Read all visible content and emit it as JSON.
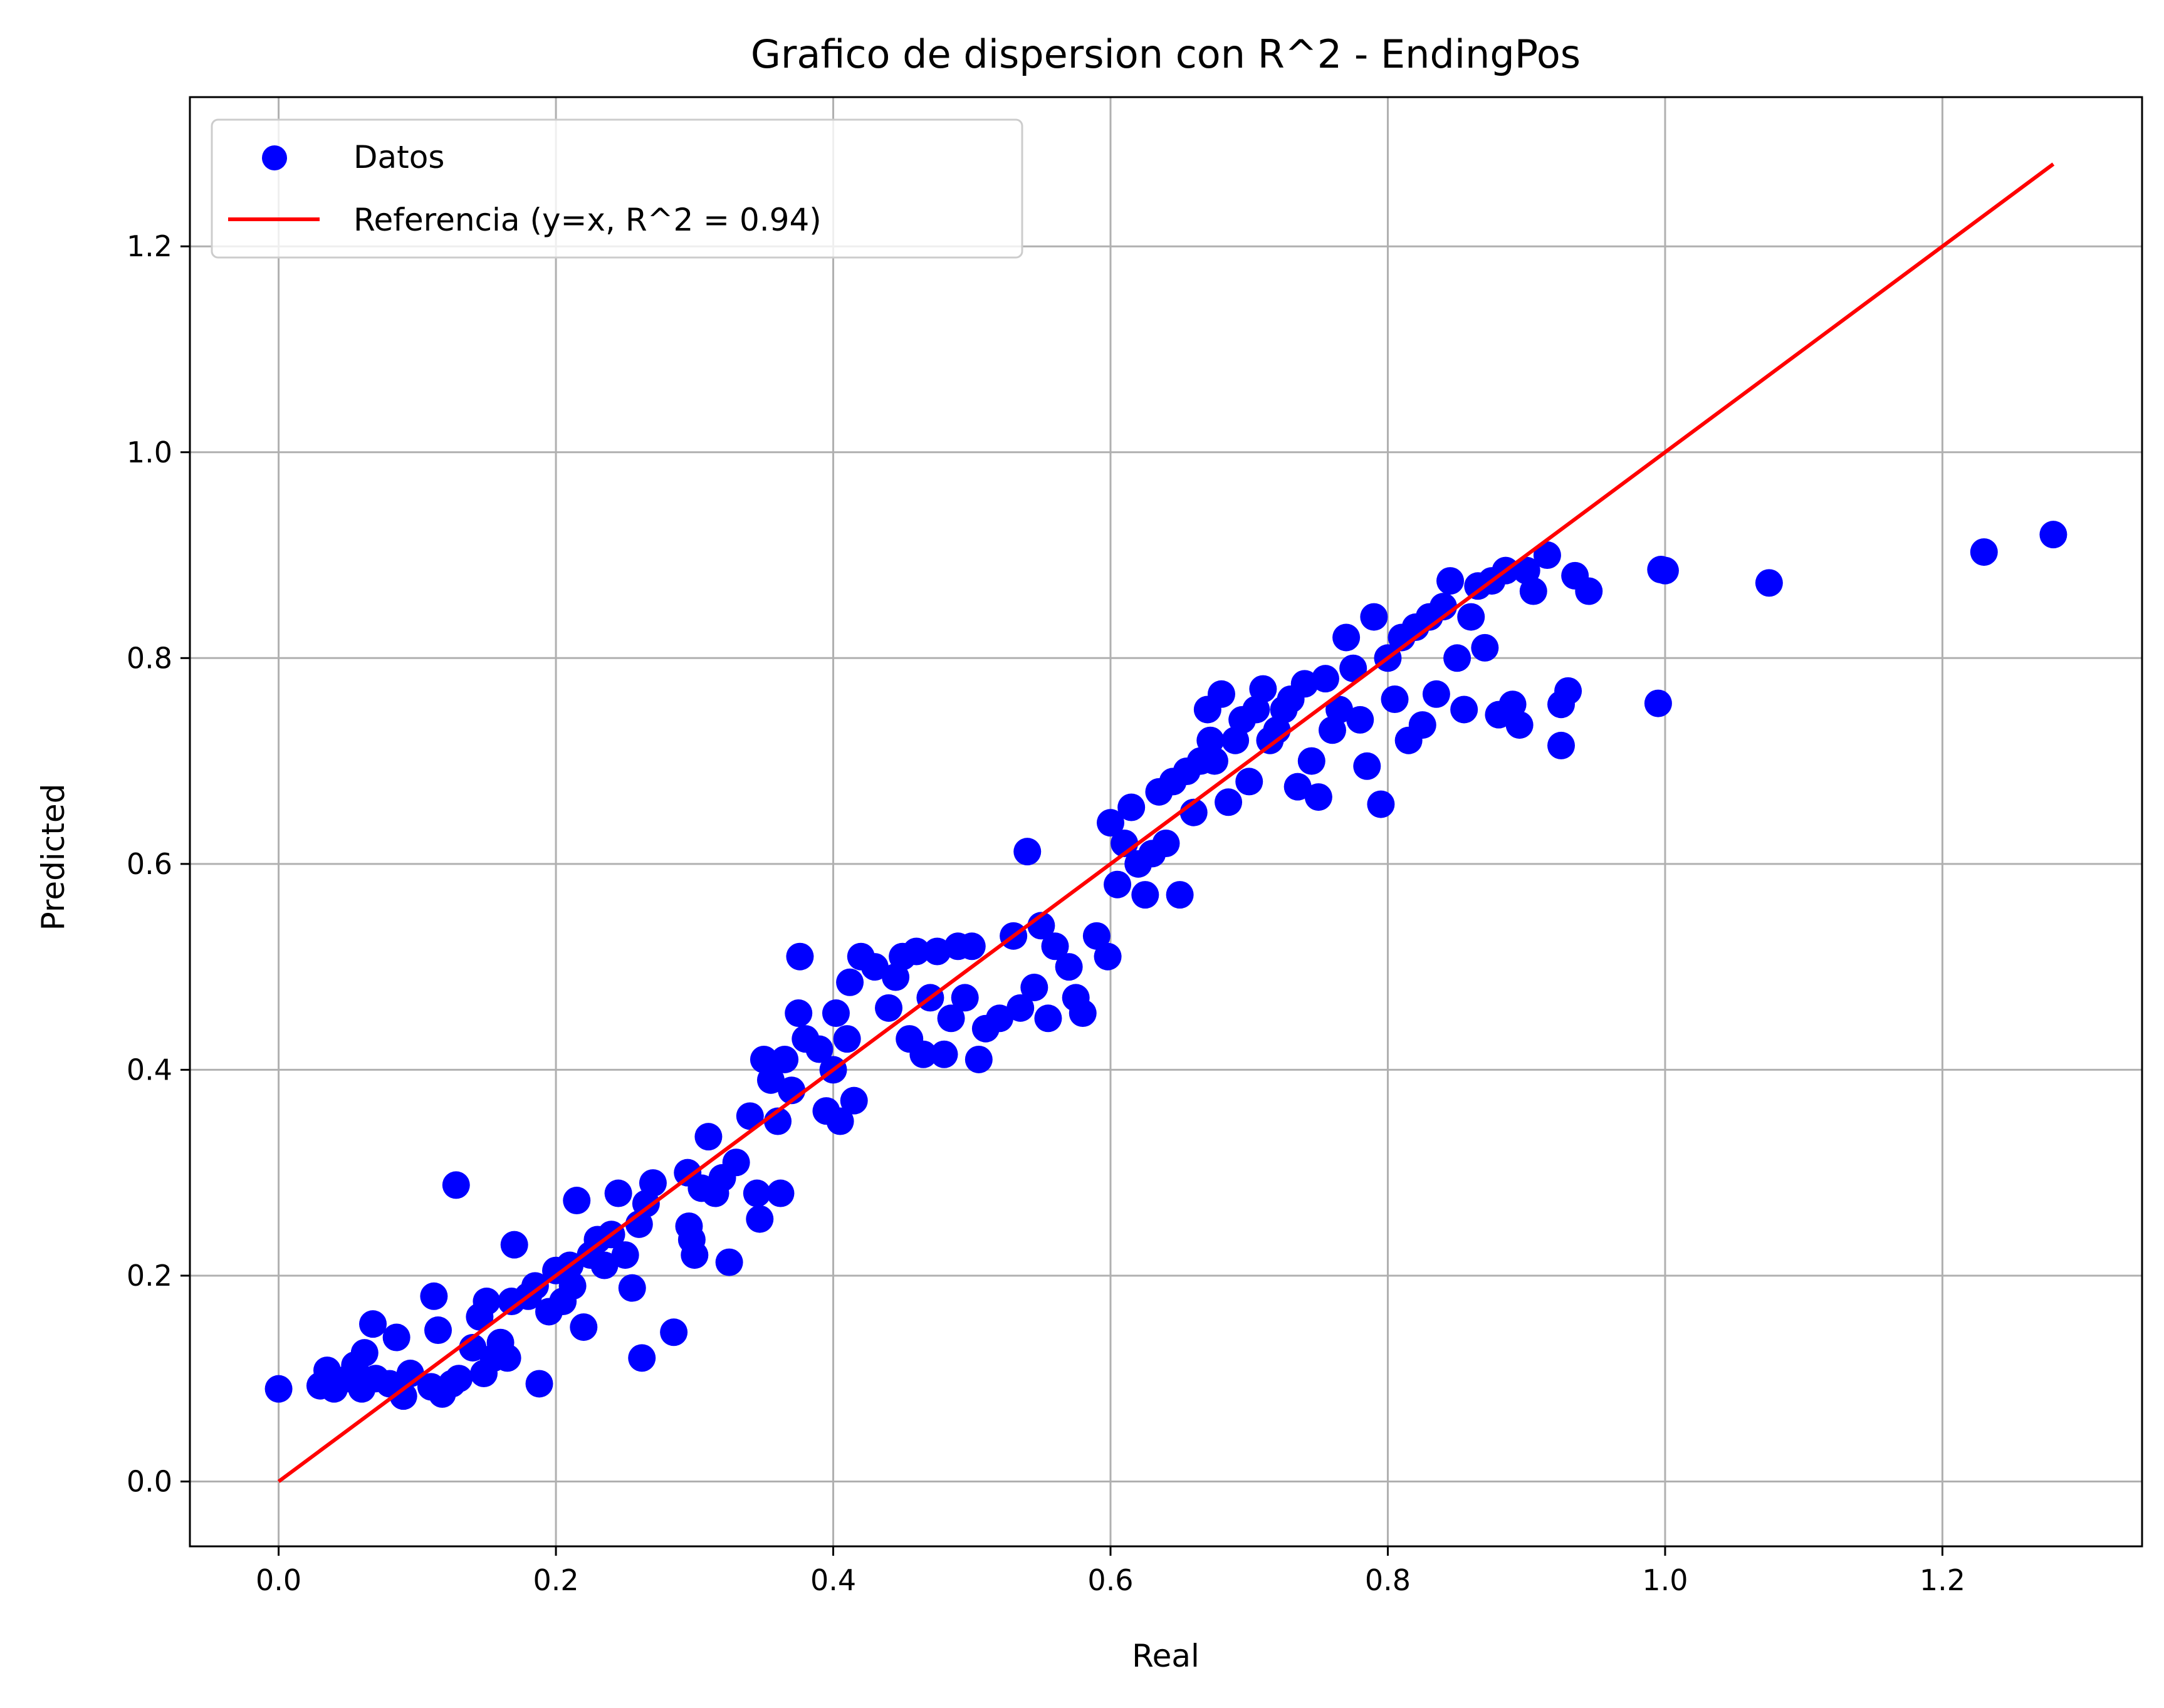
{
  "chart_data": {
    "type": "scatter",
    "title": "Grafico de dispersion con R^2 - EndingPos",
    "xlabel": "Real",
    "ylabel": "Predicted",
    "xlim": [
      -0.064,
      1.344
    ],
    "ylim": [
      -0.063,
      1.345
    ],
    "xticks": [
      "0.0",
      "0.2",
      "0.4",
      "0.6",
      "0.8",
      "1.0",
      "1.2"
    ],
    "yticks": [
      "0.0",
      "0.2",
      "0.4",
      "0.6",
      "0.8",
      "1.0",
      "1.2"
    ],
    "grid": true,
    "legend_position": "top-left",
    "series": [
      {
        "name": "Datos",
        "kind": "scatter",
        "color": "#0000ff",
        "points": [
          [
            0.0,
            0.09
          ],
          [
            0.03,
            0.093
          ],
          [
            0.035,
            0.108
          ],
          [
            0.04,
            0.09
          ],
          [
            0.05,
            0.1
          ],
          [
            0.055,
            0.113
          ],
          [
            0.06,
            0.09
          ],
          [
            0.062,
            0.125
          ],
          [
            0.068,
            0.153
          ],
          [
            0.07,
            0.1
          ],
          [
            0.08,
            0.095
          ],
          [
            0.085,
            0.14
          ],
          [
            0.09,
            0.083
          ],
          [
            0.095,
            0.105
          ],
          [
            0.11,
            0.092
          ],
          [
            0.112,
            0.18
          ],
          [
            0.115,
            0.147
          ],
          [
            0.118,
            0.085
          ],
          [
            0.125,
            0.095
          ],
          [
            0.128,
            0.288
          ],
          [
            0.13,
            0.1
          ],
          [
            0.14,
            0.13
          ],
          [
            0.145,
            0.16
          ],
          [
            0.148,
            0.105
          ],
          [
            0.15,
            0.175
          ],
          [
            0.155,
            0.12
          ],
          [
            0.16,
            0.135
          ],
          [
            0.165,
            0.12
          ],
          [
            0.168,
            0.175
          ],
          [
            0.17,
            0.23
          ],
          [
            0.18,
            0.18
          ],
          [
            0.185,
            0.19
          ],
          [
            0.188,
            0.095
          ],
          [
            0.195,
            0.165
          ],
          [
            0.2,
            0.205
          ],
          [
            0.205,
            0.175
          ],
          [
            0.21,
            0.21
          ],
          [
            0.212,
            0.19
          ],
          [
            0.215,
            0.273
          ],
          [
            0.22,
            0.15
          ],
          [
            0.225,
            0.22
          ],
          [
            0.23,
            0.235
          ],
          [
            0.235,
            0.21
          ],
          [
            0.24,
            0.24
          ],
          [
            0.25,
            0.22
          ],
          [
            0.245,
            0.28
          ],
          [
            0.255,
            0.188
          ],
          [
            0.26,
            0.25
          ],
          [
            0.262,
            0.12
          ],
          [
            0.265,
            0.27
          ],
          [
            0.27,
            0.29
          ],
          [
            0.285,
            0.145
          ],
          [
            0.295,
            0.3
          ],
          [
            0.296,
            0.248
          ],
          [
            0.298,
            0.235
          ],
          [
            0.3,
            0.22
          ],
          [
            0.305,
            0.285
          ],
          [
            0.31,
            0.335
          ],
          [
            0.315,
            0.28
          ],
          [
            0.32,
            0.295
          ],
          [
            0.325,
            0.213
          ],
          [
            0.33,
            0.31
          ],
          [
            0.34,
            0.355
          ],
          [
            0.345,
            0.28
          ],
          [
            0.347,
            0.255
          ],
          [
            0.35,
            0.41
          ],
          [
            0.355,
            0.39
          ],
          [
            0.36,
            0.35
          ],
          [
            0.362,
            0.28
          ],
          [
            0.365,
            0.41
          ],
          [
            0.37,
            0.38
          ],
          [
            0.375,
            0.455
          ],
          [
            0.376,
            0.51
          ],
          [
            0.38,
            0.43
          ],
          [
            0.39,
            0.42
          ],
          [
            0.395,
            0.36
          ],
          [
            0.4,
            0.4
          ],
          [
            0.402,
            0.455
          ],
          [
            0.405,
            0.35
          ],
          [
            0.41,
            0.43
          ],
          [
            0.412,
            0.485
          ],
          [
            0.415,
            0.37
          ],
          [
            0.42,
            0.51
          ],
          [
            0.43,
            0.5
          ],
          [
            0.44,
            0.46
          ],
          [
            0.445,
            0.49
          ],
          [
            0.45,
            0.51
          ],
          [
            0.455,
            0.43
          ],
          [
            0.46,
            0.515
          ],
          [
            0.465,
            0.415
          ],
          [
            0.47,
            0.47
          ],
          [
            0.475,
            0.515
          ],
          [
            0.48,
            0.415
          ],
          [
            0.485,
            0.45
          ],
          [
            0.49,
            0.52
          ],
          [
            0.495,
            0.47
          ],
          [
            0.5,
            0.52
          ],
          [
            0.505,
            0.41
          ],
          [
            0.51,
            0.44
          ],
          [
            0.52,
            0.45
          ],
          [
            0.53,
            0.53
          ],
          [
            0.535,
            0.46
          ],
          [
            0.54,
            0.612
          ],
          [
            0.545,
            0.48
          ],
          [
            0.55,
            0.54
          ],
          [
            0.555,
            0.45
          ],
          [
            0.56,
            0.52
          ],
          [
            0.57,
            0.5
          ],
          [
            0.575,
            0.47
          ],
          [
            0.58,
            0.455
          ],
          [
            0.59,
            0.53
          ],
          [
            0.598,
            0.51
          ],
          [
            0.6,
            0.64
          ],
          [
            0.605,
            0.58
          ],
          [
            0.61,
            0.62
          ],
          [
            0.615,
            0.655
          ],
          [
            0.62,
            0.6
          ],
          [
            0.625,
            0.57
          ],
          [
            0.63,
            0.61
          ],
          [
            0.635,
            0.67
          ],
          [
            0.64,
            0.62
          ],
          [
            0.645,
            0.68
          ],
          [
            0.65,
            0.57
          ],
          [
            0.655,
            0.69
          ],
          [
            0.66,
            0.65
          ],
          [
            0.665,
            0.7
          ],
          [
            0.67,
            0.75
          ],
          [
            0.672,
            0.72
          ],
          [
            0.675,
            0.7
          ],
          [
            0.68,
            0.765
          ],
          [
            0.685,
            0.66
          ],
          [
            0.69,
            0.72
          ],
          [
            0.695,
            0.74
          ],
          [
            0.7,
            0.68
          ],
          [
            0.705,
            0.75
          ],
          [
            0.71,
            0.77
          ],
          [
            0.715,
            0.72
          ],
          [
            0.72,
            0.73
          ],
          [
            0.725,
            0.75
          ],
          [
            0.73,
            0.76
          ],
          [
            0.735,
            0.675
          ],
          [
            0.74,
            0.775
          ],
          [
            0.745,
            0.7
          ],
          [
            0.75,
            0.665
          ],
          [
            0.755,
            0.78
          ],
          [
            0.76,
            0.73
          ],
          [
            0.765,
            0.75
          ],
          [
            0.77,
            0.82
          ],
          [
            0.775,
            0.79
          ],
          [
            0.78,
            0.74
          ],
          [
            0.785,
            0.695
          ],
          [
            0.79,
            0.84
          ],
          [
            0.795,
            0.658
          ],
          [
            0.8,
            0.8
          ],
          [
            0.805,
            0.76
          ],
          [
            0.81,
            0.82
          ],
          [
            0.815,
            0.72
          ],
          [
            0.82,
            0.83
          ],
          [
            0.825,
            0.735
          ],
          [
            0.83,
            0.84
          ],
          [
            0.835,
            0.765
          ],
          [
            0.84,
            0.85
          ],
          [
            0.845,
            0.875
          ],
          [
            0.85,
            0.8
          ],
          [
            0.855,
            0.75
          ],
          [
            0.86,
            0.84
          ],
          [
            0.865,
            0.87
          ],
          [
            0.87,
            0.81
          ],
          [
            0.875,
            0.875
          ],
          [
            0.88,
            0.745
          ],
          [
            0.885,
            0.885
          ],
          [
            0.89,
            0.755
          ],
          [
            0.895,
            0.735
          ],
          [
            0.9,
            0.885
          ],
          [
            0.905,
            0.865
          ],
          [
            0.915,
            0.9
          ],
          [
            0.925,
            0.715
          ],
          [
            0.925,
            0.755
          ],
          [
            0.93,
            0.768
          ],
          [
            0.935,
            0.88
          ],
          [
            0.945,
            0.865
          ],
          [
            0.995,
            0.756
          ],
          [
            0.997,
            0.886
          ],
          [
            1.0,
            0.885
          ],
          [
            1.075,
            0.873
          ],
          [
            1.23,
            0.903
          ],
          [
            1.28,
            0.92
          ]
        ]
      },
      {
        "name": "Referencia (y=x, R^2 = 0.94)",
        "kind": "line",
        "color": "#ff0000",
        "points": [
          [
            0.0,
            0.0
          ],
          [
            1.28,
            1.28
          ]
        ]
      }
    ]
  }
}
